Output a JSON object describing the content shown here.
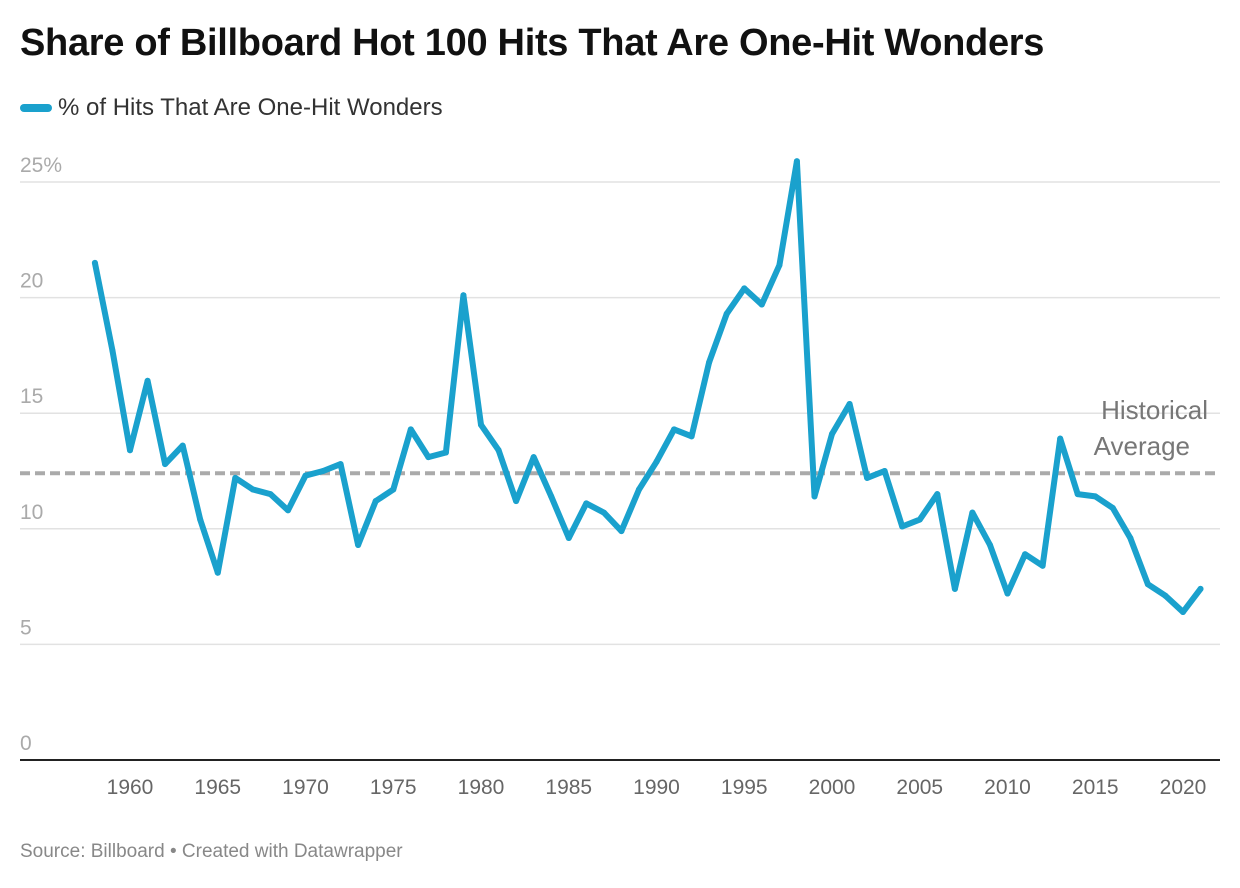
{
  "chart_data": {
    "type": "line",
    "title": "Share of Billboard Hot 100 Hits That Are One-Hit Wonders",
    "xlabel": "",
    "ylabel": "",
    "ylim": [
      0,
      25
    ],
    "xlim": [
      1958,
      2021
    ],
    "grid": true,
    "legend_position": "top-left",
    "y_ticks": [
      {
        "value": 0,
        "label": "0"
      },
      {
        "value": 5,
        "label": "5"
      },
      {
        "value": 10,
        "label": "10"
      },
      {
        "value": 15,
        "label": "15"
      },
      {
        "value": 20,
        "label": "20"
      },
      {
        "value": 25,
        "label": "25%"
      }
    ],
    "x_ticks": [
      {
        "value": 1960,
        "label": "1960"
      },
      {
        "value": 1965,
        "label": "1965"
      },
      {
        "value": 1970,
        "label": "1970"
      },
      {
        "value": 1975,
        "label": "1975"
      },
      {
        "value": 1980,
        "label": "1980"
      },
      {
        "value": 1985,
        "label": "1985"
      },
      {
        "value": 1990,
        "label": "1990"
      },
      {
        "value": 1995,
        "label": "1995"
      },
      {
        "value": 2000,
        "label": "2000"
      },
      {
        "value": 2005,
        "label": "2005"
      },
      {
        "value": 2010,
        "label": "2010"
      },
      {
        "value": 2015,
        "label": "2015"
      },
      {
        "value": 2020,
        "label": "2020"
      }
    ],
    "series": [
      {
        "name": "% of Hits That Are One-Hit Wonders",
        "color": "#1aa1cd",
        "x": [
          1958,
          1959,
          1960,
          1961,
          1962,
          1963,
          1964,
          1965,
          1966,
          1967,
          1968,
          1969,
          1970,
          1971,
          1972,
          1973,
          1974,
          1975,
          1976,
          1977,
          1978,
          1979,
          1980,
          1981,
          1982,
          1983,
          1984,
          1985,
          1986,
          1987,
          1988,
          1989,
          1990,
          1991,
          1992,
          1993,
          1994,
          1995,
          1996,
          1997,
          1998,
          1999,
          2000,
          2001,
          2002,
          2003,
          2004,
          2005,
          2006,
          2007,
          2008,
          2009,
          2010,
          2011,
          2012,
          2013,
          2014,
          2015,
          2016,
          2017,
          2018,
          2019,
          2020,
          2021
        ],
        "values": [
          21.5,
          17.7,
          13.4,
          16.4,
          12.8,
          13.6,
          10.4,
          8.1,
          12.2,
          11.7,
          11.5,
          10.8,
          12.3,
          12.5,
          12.8,
          9.3,
          11.2,
          11.7,
          14.3,
          13.1,
          13.3,
          20.1,
          14.5,
          13.4,
          11.2,
          13.1,
          11.4,
          9.6,
          11.1,
          10.7,
          9.9,
          11.7,
          12.9,
          14.3,
          14.0,
          17.2,
          19.3,
          20.4,
          19.7,
          21.4,
          25.9,
          11.4,
          14.1,
          15.4,
          12.2,
          12.5,
          10.1,
          10.4,
          11.5,
          7.4,
          10.7,
          9.3,
          7.2,
          8.9,
          8.4,
          13.9,
          11.5,
          11.4,
          10.9,
          9.6,
          7.6,
          7.1,
          6.4,
          7.4
        ]
      }
    ],
    "reference_line": {
      "value": 12.4,
      "label_line1": "Historical",
      "label_line2": "Average",
      "color": "#aaaaaa"
    }
  },
  "footer": "Source: Billboard • Created with Datawrapper"
}
